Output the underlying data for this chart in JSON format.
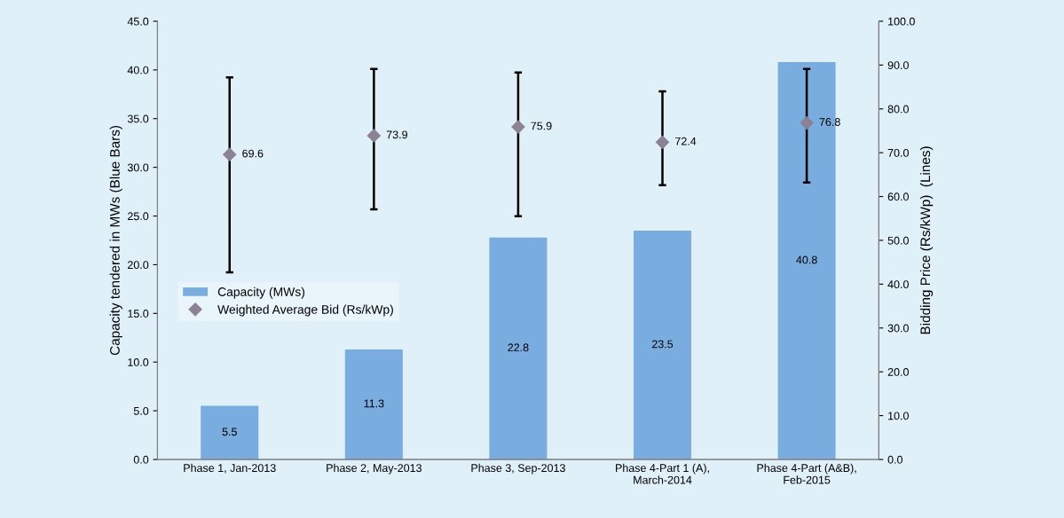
{
  "chart_data": {
    "type": "bar",
    "ylabel": "Capacity tendered in MWs (Blue Bars)",
    "y2label": "Bidding Price (Rs/kWp)  (Lines)",
    "categories": [
      "Phase 1, Jan-2013",
      "Phase 2, May-2013",
      "Phase 3, Sep-2013",
      "Phase 4-Part 1 (A), March-2014",
      "Phase 4-Part (A&B), Feb-2015"
    ],
    "series": [
      {
        "name": "Capacity (MWs)",
        "color": "#7aaddf",
        "values": [
          5.5,
          11.3,
          22.8,
          23.5,
          40.8
        ],
        "data_labels": true
      },
      {
        "name": "Weighted Average Bid (Rs/kWp)",
        "type": "scatter",
        "axis": "y2",
        "color": "#8c8294",
        "marker": "diamond",
        "values": [
          69.6,
          73.9,
          75.9,
          72.4,
          76.8
        ],
        "data_labels": true,
        "errors": [
          [
            42.7,
            87.2
          ],
          [
            57.1,
            89.1
          ],
          [
            55.5,
            88.3
          ],
          [
            62.6,
            84.0
          ],
          [
            63.2,
            89.1
          ]
        ]
      }
    ],
    "ylim": [
      0,
      45
    ],
    "yticks": [
      {
        "value": 0,
        "label": "0.0"
      },
      {
        "value": 5,
        "label": "5.0"
      },
      {
        "value": 10,
        "label": "10.0"
      },
      {
        "value": 15,
        "label": "15.0"
      },
      {
        "value": 20,
        "label": "20.0"
      },
      {
        "value": 25,
        "label": "25.0"
      },
      {
        "value": 30,
        "label": "30.0"
      },
      {
        "value": 35,
        "label": "35.0"
      },
      {
        "value": 40,
        "label": "40.0"
      },
      {
        "value": 45,
        "label": "45.0"
      }
    ],
    "y2lim": [
      0,
      100
    ],
    "y2ticks": [
      {
        "value": 0,
        "label": "0.0"
      },
      {
        "value": 10,
        "label": "10.0"
      },
      {
        "value": 20,
        "label": "20.0"
      },
      {
        "value": 30,
        "label": "30.0"
      },
      {
        "value": 40,
        "label": "40.0"
      },
      {
        "value": 50,
        "label": "50.0"
      },
      {
        "value": 60,
        "label": "60.0"
      },
      {
        "value": 70,
        "label": "70.0"
      },
      {
        "value": 80,
        "label": "80.0"
      },
      {
        "value": 90,
        "label": "90.0"
      },
      {
        "value": 100,
        "label": "100.0"
      }
    ],
    "grid": false,
    "legend": "left"
  }
}
